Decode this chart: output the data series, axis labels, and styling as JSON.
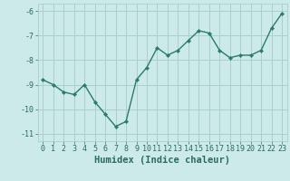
{
  "x": [
    0,
    1,
    2,
    3,
    4,
    5,
    6,
    7,
    8,
    9,
    10,
    11,
    12,
    13,
    14,
    15,
    16,
    17,
    18,
    19,
    20,
    21,
    22,
    23
  ],
  "y": [
    -8.8,
    -9.0,
    -9.3,
    -9.4,
    -9.0,
    -9.7,
    -10.2,
    -10.7,
    -10.5,
    -8.8,
    -8.3,
    -7.5,
    -7.8,
    -7.6,
    -7.2,
    -6.8,
    -6.9,
    -7.6,
    -7.9,
    -7.8,
    -7.8,
    -7.6,
    -6.7,
    -6.1
  ],
  "line_color": "#2a7a6e",
  "marker": "D",
  "marker_size": 2.2,
  "bg_color": "#cceae7",
  "grid_color": "#aacfcc",
  "xlabel": "Humidex (Indice chaleur)",
  "xlim": [
    -0.5,
    23.5
  ],
  "ylim": [
    -11.3,
    -5.7
  ],
  "yticks": [
    -11,
    -10,
    -9,
    -8,
    -7,
    -6
  ],
  "xticks": [
    0,
    1,
    2,
    3,
    4,
    5,
    6,
    7,
    8,
    9,
    10,
    11,
    12,
    13,
    14,
    15,
    16,
    17,
    18,
    19,
    20,
    21,
    22,
    23
  ],
  "xtick_labels": [
    "0",
    "1",
    "2",
    "3",
    "4",
    "5",
    "6",
    "7",
    "8",
    "9",
    "10",
    "11",
    "12",
    "13",
    "14",
    "15",
    "16",
    "17",
    "18",
    "19",
    "20",
    "21",
    "22",
    "23"
  ],
  "font_color": "#2a6b60",
  "tick_fontsize": 6.0,
  "xlabel_fontsize": 7.5,
  "line_width": 1.0
}
